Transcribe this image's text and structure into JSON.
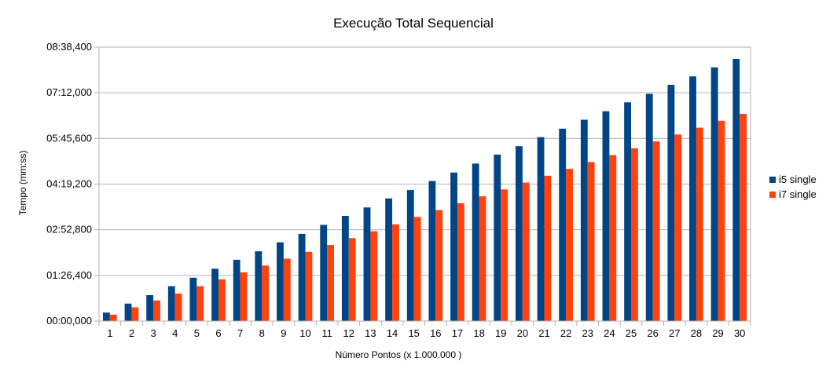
{
  "chart_data": {
    "type": "bar",
    "title": "Execução Total Sequencial",
    "xlabel": "Número Pontos (x 1.000.000 )",
    "ylabel": "Tempo (mm:ss)",
    "categories": [
      "1",
      "2",
      "3",
      "4",
      "5",
      "6",
      "7",
      "8",
      "9",
      "10",
      "11",
      "12",
      "13",
      "14",
      "15",
      "16",
      "17",
      "18",
      "19",
      "20",
      "21",
      "22",
      "23",
      "24",
      "25",
      "26",
      "27",
      "28",
      "29",
      "30"
    ],
    "y_tick_labels": [
      "00:00,000",
      "01:26,400",
      "02:52,800",
      "04:19,200",
      "05:45,600",
      "07:12,000",
      "08:38,400"
    ],
    "y_unit": "seconds",
    "ylim": [
      0,
      518.4
    ],
    "grid": true,
    "legend_position": "right",
    "series": [
      {
        "name": "i5 single",
        "color": "#004586",
        "values": [
          16,
          33,
          49,
          66,
          82,
          99,
          116,
          132,
          149,
          165,
          182,
          199,
          215,
          232,
          248,
          265,
          281,
          298,
          315,
          331,
          348,
          364,
          381,
          397,
          414,
          430,
          447,
          463,
          480,
          496
        ]
      },
      {
        "name": "i7 single",
        "color": "#ff420e",
        "values": [
          12,
          26,
          39,
          52,
          66,
          79,
          92,
          105,
          118,
          131,
          144,
          157,
          170,
          183,
          197,
          210,
          223,
          236,
          249,
          262,
          275,
          288,
          301,
          314,
          327,
          340,
          353,
          366,
          379,
          392
        ]
      }
    ]
  }
}
